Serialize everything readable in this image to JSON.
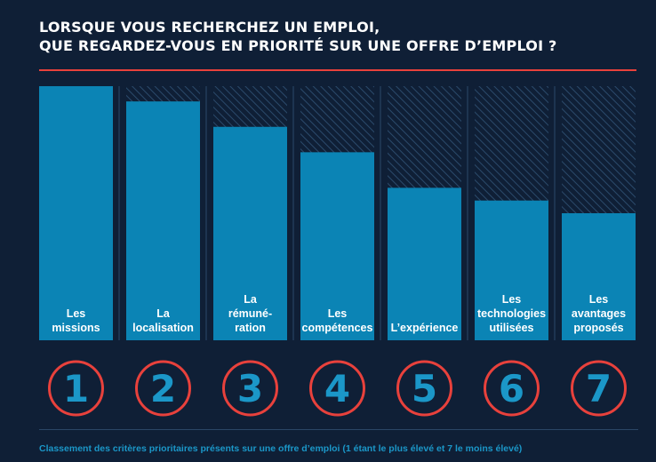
{
  "title_lines": [
    "LORSQUE VOUS RECHERCHEZ UN EMPLOI,",
    "QUE REGARDEZ-VOUS EN PRIORITÉ SUR UNE OFFRE D’EMPLOI ?"
  ],
  "footnote": "Classement des critères prioritaires présents sur une offre d’emploi (1 étant le plus élevé et 7 le moins élevé)",
  "colors": {
    "background": "#0f1f36",
    "bar": "#0b84b5",
    "accent_red": "#e8413c",
    "rank_number": "#1b97c8",
    "hatch": "#2b4a6b"
  },
  "chart_data": {
    "type": "bar",
    "categories": [
      [
        "Les",
        "missions"
      ],
      [
        "La",
        "localisation"
      ],
      [
        "La",
        "rémuné-",
        "ration"
      ],
      [
        "Les",
        "compétences"
      ],
      [
        "L’expérience"
      ],
      [
        "Les",
        "technologies",
        "utilisées"
      ],
      [
        "Les",
        "avantages",
        "proposés"
      ]
    ],
    "ranks": [
      "1",
      "2",
      "3",
      "4",
      "5",
      "6",
      "7"
    ],
    "values": [
      100,
      94,
      84,
      74,
      60,
      55,
      50
    ],
    "ylim": [
      0,
      100
    ],
    "grid": false,
    "legend": "none"
  }
}
